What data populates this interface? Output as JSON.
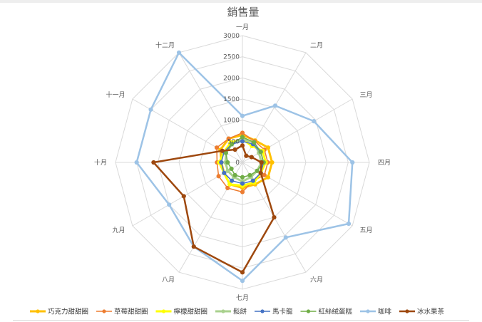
{
  "chart_data": {
    "type": "radar",
    "title": "銷售量",
    "categories": [
      "一月",
      "二月",
      "三月",
      "四月",
      "五月",
      "六月",
      "七月",
      "八月",
      "九月",
      "十月",
      "十一月",
      "十二月"
    ],
    "rlim": [
      0,
      3000
    ],
    "ticks": [
      0,
      500,
      1000,
      1500,
      2000,
      2500,
      3000
    ],
    "grid": true,
    "legend_position": "bottom",
    "series": [
      {
        "name": "巧克力甜甜圈",
        "color": "#ffc000",
        "width": 3,
        "values": [
          650,
          600,
          700,
          700,
          700,
          600,
          600,
          600,
          500,
          500,
          600,
          650
        ]
      },
      {
        "name": "草莓甜甜圈",
        "color": "#ed7d31",
        "width": 1.5,
        "values": [
          700,
          580,
          600,
          600,
          600,
          500,
          700,
          700,
          650,
          600,
          700,
          650
        ]
      },
      {
        "name": "檸檬甜甜圈",
        "color": "#ffff00",
        "width": 3,
        "values": [
          550,
          450,
          550,
          550,
          500,
          550,
          550,
          600,
          500,
          550,
          500,
          550
        ]
      },
      {
        "name": "鬆餅",
        "color": "#a9d18e",
        "width": 3,
        "values": [
          550,
          550,
          450,
          450,
          400,
          400,
          450,
          400,
          400,
          400,
          450,
          500
        ]
      },
      {
        "name": "馬卡龍",
        "color": "#4472c4",
        "width": 1.5,
        "values": [
          500,
          500,
          500,
          500,
          500,
          500,
          500,
          500,
          500,
          500,
          500,
          500
        ]
      },
      {
        "name": "紅絲絨蛋糕",
        "color": "#70ad47",
        "width": 1.5,
        "values": [
          600,
          550,
          500,
          500,
          400,
          350,
          350,
          350,
          300,
          350,
          450,
          500
        ]
      },
      {
        "name": "咖啡",
        "color": "#9dc3e6",
        "width": 2.5,
        "values": [
          1100,
          1550,
          1950,
          2600,
          2900,
          2050,
          2800,
          2300,
          2000,
          2500,
          2500,
          3000
        ]
      },
      {
        "name": "冰水果茶",
        "color": "#9e480e",
        "width": 2.5,
        "values": [
          400,
          180,
          250,
          450,
          500,
          1500,
          2600,
          2300,
          1600,
          2100,
          550,
          350
        ]
      }
    ]
  }
}
